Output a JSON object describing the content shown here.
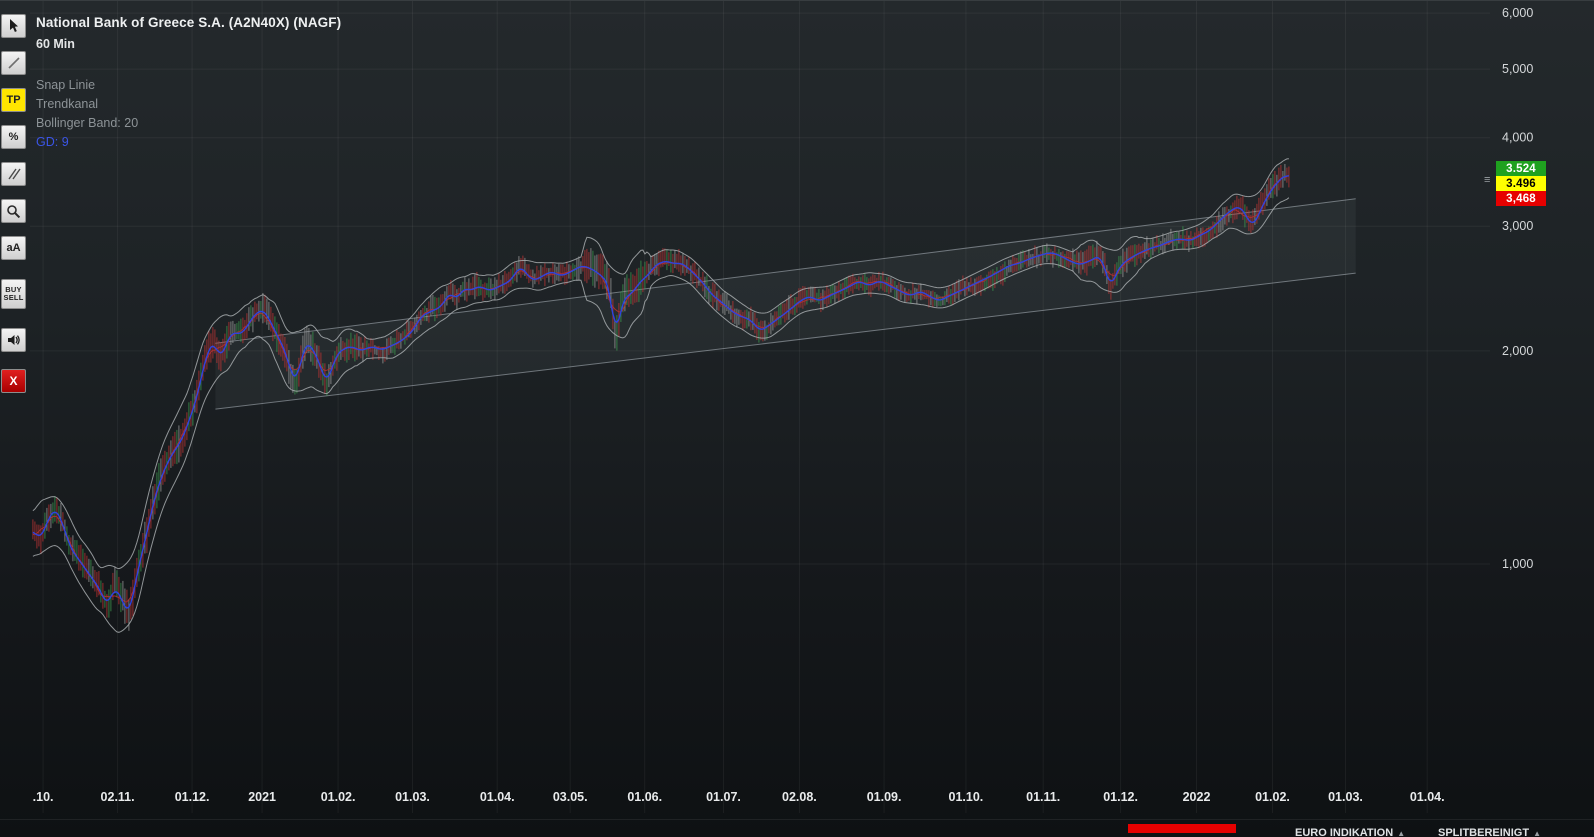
{
  "header": {
    "title": "National Bank of Greece S.A. (A2N40X) (NAGF)",
    "timeframe": "60 Min",
    "legend": [
      {
        "label": "Snap Linie",
        "color": "#8d9397"
      },
      {
        "label": "Trendkanal",
        "color": "#8d9397"
      },
      {
        "label": "Bollinger Band: 20",
        "color": "#8d9397"
      },
      {
        "label": "GD: 9",
        "color": "#3b55e6"
      }
    ]
  },
  "toolbar": {
    "tp_label": "TP",
    "percent_label": "%",
    "text_size_label": "aA",
    "buy_label": "BUY",
    "sell_label": "SELL",
    "close_label": "X"
  },
  "price_badges": [
    {
      "label": "3.524",
      "bg": "#1fa11f",
      "fg": "#ffffff"
    },
    {
      "label": "3.496",
      "bg": "#ffff00",
      "fg": "#000000"
    },
    {
      "label": "3,468",
      "bg": "#e60000",
      "fg": "#ffffff"
    }
  ],
  "footer": {
    "items": [
      {
        "text": "EURO INDIKATION",
        "arrow": "▲"
      },
      {
        "text": "SPLITBEREINIGT",
        "arrow": "▲"
      }
    ]
  },
  "chart_data": {
    "type": "line",
    "title": "National Bank of Greece S.A. (A2N40X) (NAGF)",
    "timeframe": "60 Min",
    "indicators": [
      "Snap Linie",
      "Trendkanal",
      "Bollinger Band: 20",
      "GD: 9"
    ],
    "y_axis": {
      "scale": "log",
      "ticks": [
        1000,
        2000,
        3000,
        4000,
        5000,
        6000
      ],
      "tick_labels": [
        "1,000",
        "2,000",
        "3,000",
        "4,000",
        "5,000",
        "6,000"
      ],
      "approx_range": [
        450,
        6200
      ]
    },
    "x_axis": {
      "ticks": [
        {
          "label": ".10.",
          "f": 0.009
        },
        {
          "label": "02.11.",
          "f": 0.06
        },
        {
          "label": "01.12.",
          "f": 0.111
        },
        {
          "label": "2021",
          "f": 0.159
        },
        {
          "label": "01.02.",
          "f": 0.211
        },
        {
          "label": "01.03.",
          "f": 0.262
        },
        {
          "label": "01.04.",
          "f": 0.32
        },
        {
          "label": "03.05.",
          "f": 0.37
        },
        {
          "label": "01.06.",
          "f": 0.421
        },
        {
          "label": "01.07.",
          "f": 0.475
        },
        {
          "label": "02.08.",
          "f": 0.527
        },
        {
          "label": "01.09.",
          "f": 0.585
        },
        {
          "label": "01.10.",
          "f": 0.641
        },
        {
          "label": "01.11.",
          "f": 0.694
        },
        {
          "label": "01.12.",
          "f": 0.747
        },
        {
          "label": "2022",
          "f": 0.799
        },
        {
          "label": "01.02.",
          "f": 0.851
        },
        {
          "label": "01.03.",
          "f": 0.901
        },
        {
          "label": "01.04.",
          "f": 0.957
        }
      ]
    },
    "trend_channel": {
      "f_start": 0.127,
      "f_end": 0.908,
      "upper_start": 2050,
      "upper_end": 3280,
      "lower_start": 1655,
      "lower_end": 2575
    },
    "current_prices": [
      "3.524",
      "3.496",
      "3,468"
    ],
    "series": [
      {
        "name": "NAGF price (60 min)",
        "color": "#2e44e0",
        "points": [
          [
            0.002,
            1120
          ],
          [
            0.007,
            1080
          ],
          [
            0.012,
            1150
          ],
          [
            0.017,
            1200
          ],
          [
            0.022,
            1150
          ],
          [
            0.027,
            1060
          ],
          [
            0.034,
            1010
          ],
          [
            0.041,
            965
          ],
          [
            0.048,
            920
          ],
          [
            0.053,
            870
          ],
          [
            0.058,
            930
          ],
          [
            0.063,
            890
          ],
          [
            0.068,
            845
          ],
          [
            0.074,
            985
          ],
          [
            0.079,
            1080
          ],
          [
            0.084,
            1210
          ],
          [
            0.089,
            1310
          ],
          [
            0.094,
            1390
          ],
          [
            0.099,
            1445
          ],
          [
            0.105,
            1510
          ],
          [
            0.11,
            1620
          ],
          [
            0.114,
            1700
          ],
          [
            0.118,
            1870
          ],
          [
            0.122,
            2000
          ],
          [
            0.126,
            2070
          ],
          [
            0.13,
            1945
          ],
          [
            0.134,
            2030
          ],
          [
            0.138,
            2130
          ],
          [
            0.142,
            2110
          ],
          [
            0.147,
            2130
          ],
          [
            0.151,
            2210
          ],
          [
            0.155,
            2260
          ],
          [
            0.159,
            2290
          ],
          [
            0.163,
            2240
          ],
          [
            0.167,
            2150
          ],
          [
            0.171,
            2070
          ],
          [
            0.175,
            2000
          ],
          [
            0.179,
            1850
          ],
          [
            0.183,
            1815
          ],
          [
            0.187,
            2000
          ],
          [
            0.19,
            2060
          ],
          [
            0.194,
            2010
          ],
          [
            0.199,
            1905
          ],
          [
            0.203,
            1790
          ],
          [
            0.206,
            1870
          ],
          [
            0.21,
            1975
          ],
          [
            0.214,
            2010
          ],
          [
            0.22,
            2030
          ],
          [
            0.227,
            2000
          ],
          [
            0.234,
            2030
          ],
          [
            0.241,
            2005
          ],
          [
            0.248,
            2035
          ],
          [
            0.255,
            2070
          ],
          [
            0.262,
            2130
          ],
          [
            0.268,
            2240
          ],
          [
            0.275,
            2275
          ],
          [
            0.282,
            2310
          ],
          [
            0.288,
            2430
          ],
          [
            0.292,
            2350
          ],
          [
            0.297,
            2460
          ],
          [
            0.301,
            2430
          ],
          [
            0.308,
            2470
          ],
          [
            0.315,
            2430
          ],
          [
            0.322,
            2470
          ],
          [
            0.329,
            2510
          ],
          [
            0.336,
            2640
          ],
          [
            0.34,
            2570
          ],
          [
            0.345,
            2510
          ],
          [
            0.351,
            2550
          ],
          [
            0.357,
            2590
          ],
          [
            0.364,
            2550
          ],
          [
            0.371,
            2590
          ],
          [
            0.378,
            2640
          ],
          [
            0.385,
            2610
          ],
          [
            0.392,
            2550
          ],
          [
            0.397,
            2470
          ],
          [
            0.401,
            2060
          ],
          [
            0.405,
            2330
          ],
          [
            0.409,
            2390
          ],
          [
            0.414,
            2430
          ],
          [
            0.418,
            2510
          ],
          [
            0.423,
            2550
          ],
          [
            0.428,
            2640
          ],
          [
            0.433,
            2670
          ],
          [
            0.437,
            2680
          ],
          [
            0.441,
            2650
          ],
          [
            0.445,
            2665
          ],
          [
            0.449,
            2640
          ],
          [
            0.453,
            2590
          ],
          [
            0.457,
            2545
          ],
          [
            0.462,
            2480
          ],
          [
            0.467,
            2400
          ],
          [
            0.473,
            2350
          ],
          [
            0.478,
            2300
          ],
          [
            0.484,
            2250
          ],
          [
            0.489,
            2230
          ],
          [
            0.494,
            2210
          ],
          [
            0.5,
            2130
          ],
          [
            0.505,
            2165
          ],
          [
            0.511,
            2210
          ],
          [
            0.516,
            2250
          ],
          [
            0.522,
            2300
          ],
          [
            0.527,
            2350
          ],
          [
            0.534,
            2390
          ],
          [
            0.541,
            2350
          ],
          [
            0.548,
            2395
          ],
          [
            0.555,
            2430
          ],
          [
            0.562,
            2470
          ],
          [
            0.568,
            2510
          ],
          [
            0.575,
            2470
          ],
          [
            0.582,
            2515
          ],
          [
            0.589,
            2470
          ],
          [
            0.596,
            2430
          ],
          [
            0.603,
            2390
          ],
          [
            0.61,
            2430
          ],
          [
            0.616,
            2390
          ],
          [
            0.623,
            2350
          ],
          [
            0.63,
            2395
          ],
          [
            0.637,
            2430
          ],
          [
            0.644,
            2470
          ],
          [
            0.651,
            2510
          ],
          [
            0.658,
            2550
          ],
          [
            0.664,
            2590
          ],
          [
            0.671,
            2640
          ],
          [
            0.678,
            2660
          ],
          [
            0.685,
            2700
          ],
          [
            0.692,
            2730
          ],
          [
            0.699,
            2755
          ],
          [
            0.705,
            2730
          ],
          [
            0.712,
            2680
          ],
          [
            0.719,
            2645
          ],
          [
            0.726,
            2680
          ],
          [
            0.733,
            2730
          ],
          [
            0.737,
            2590
          ],
          [
            0.74,
            2440
          ],
          [
            0.743,
            2550
          ],
          [
            0.747,
            2640
          ],
          [
            0.753,
            2700
          ],
          [
            0.76,
            2750
          ],
          [
            0.767,
            2790
          ],
          [
            0.774,
            2815
          ],
          [
            0.781,
            2860
          ],
          [
            0.788,
            2880
          ],
          [
            0.795,
            2860
          ],
          [
            0.801,
            2910
          ],
          [
            0.808,
            2955
          ],
          [
            0.815,
            3055
          ],
          [
            0.822,
            3155
          ],
          [
            0.829,
            3205
          ],
          [
            0.833,
            3100
          ],
          [
            0.837,
            3000
          ],
          [
            0.84,
            3055
          ],
          [
            0.844,
            3205
          ],
          [
            0.848,
            3310
          ],
          [
            0.852,
            3420
          ],
          [
            0.856,
            3480
          ],
          [
            0.86,
            3560
          ],
          [
            0.863,
            3496
          ]
        ]
      }
    ]
  }
}
